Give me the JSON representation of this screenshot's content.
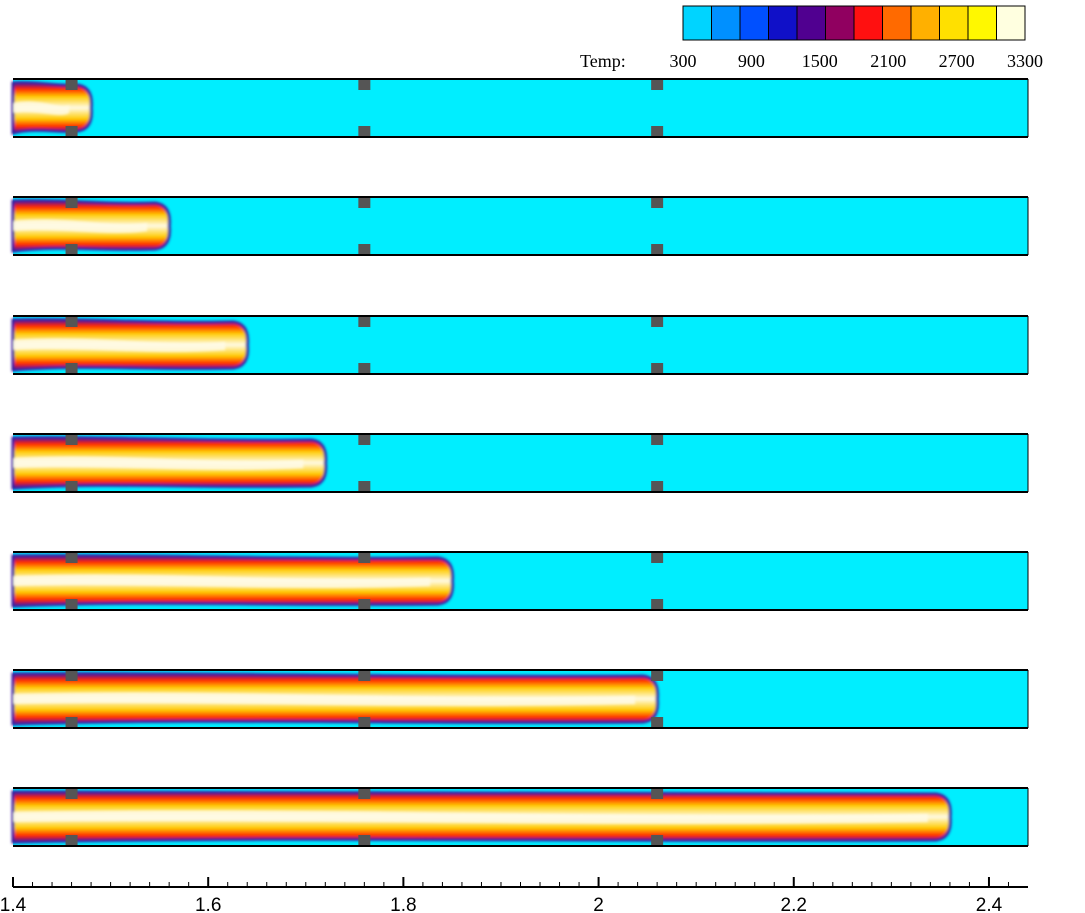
{
  "colorbar": {
    "title": "Temp:",
    "tick_labels": [
      "300",
      "900",
      "1500",
      "2100",
      "2700",
      "3300"
    ],
    "colors": [
      "#00d4ff",
      "#0090ff",
      "#0050ff",
      "#1010c8",
      "#500090",
      "#900060",
      "#ff1010",
      "#ff6a00",
      "#ffb000",
      "#ffe000",
      "#fff800",
      "#ffffe0"
    ]
  },
  "x_axis": {
    "tick_labels": [
      "1.4",
      "1.6",
      "1.8",
      "2",
      "2.2",
      "2.4"
    ],
    "tick_values": [
      1.4,
      1.6,
      1.8,
      2.0,
      2.2,
      2.4
    ],
    "range": [
      1.4,
      2.44
    ]
  },
  "obstacles_x": [
    1.46,
    1.76,
    2.06
  ],
  "flame_front_x": [
    1.48,
    1.56,
    1.64,
    1.72,
    1.85,
    2.06,
    2.36
  ],
  "colors": {
    "cold_gas": "#00eeff",
    "obstacle": "#555555",
    "flame_hot": "#fffbe6",
    "flame_mid": "#ffcc00",
    "flame_edge": "#ff2200",
    "flame_dark": "#3a1aa0"
  }
}
